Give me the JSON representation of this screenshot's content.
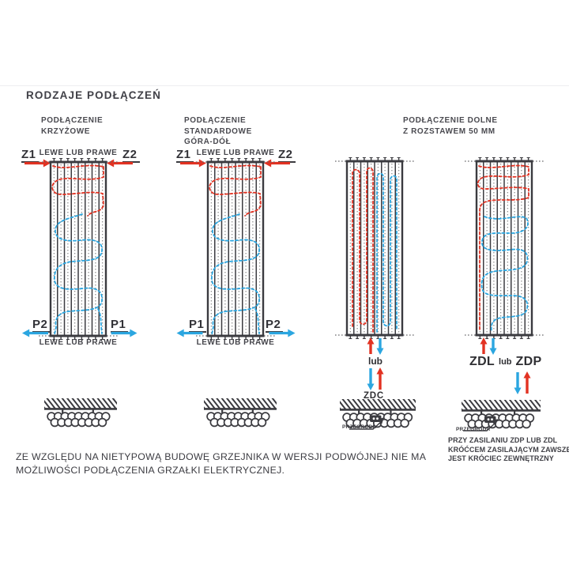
{
  "colors": {
    "red": "#e23222",
    "blue": "#2ba6e0",
    "dark": "#3b3b40",
    "dots": "#8f8f8f"
  },
  "title": "RODZAJE PODŁĄCZEŃ",
  "headings": {
    "col1": "PODŁĄCZENIE\nKRZYŻOWE",
    "col2": "PODŁĄCZENIE\nSTANDARDOWE\nGÓRA-DÓŁ",
    "col3": "PODŁĄCZENIE DOLNE\nZ ROZSTAWEM 50 MM"
  },
  "diagram1": {
    "top_label": "LEWE LUB PRAWE",
    "port_top_left": "Z1",
    "port_top_right": "Z2",
    "port_bottom_left": "P2",
    "port_bottom_right": "P1",
    "bottom_label": "LEWE LUB PRAWE"
  },
  "diagram2": {
    "top_label": "LEWE LUB PRAWE",
    "port_top_left": "Z1",
    "port_top_right": "Z2",
    "port_bottom_left": "P1",
    "port_bottom_right": "P2",
    "bottom_label": "LEWE LUB PRAWE"
  },
  "diagram3": {
    "or_label": "lub",
    "connection_label": "ZDC",
    "partition_label": "PRZEGRODA"
  },
  "diagram4": {
    "connection_left": "ZDL",
    "or_label": "lub",
    "connection_right": "ZDP",
    "partition_label": "PRZEGRODA",
    "note": "PRZY ZASILANIU ZDP LUB ZDL\nKRÓĆCEM ZASILAJĄCYM ZAWSZE\nJEST KRÓCIEC ZEWNĘTRZNY"
  },
  "footer": "ZE WZGLĘDU NA NIETYPOWĄ BUDOWĘ GRZEJNIKA W WERSJI PODWÓJNEJ NIE MA\nMOŻLIWOŚCI PODŁĄCZENIA GRZAŁKI ELEKTRYCZNEJ."
}
